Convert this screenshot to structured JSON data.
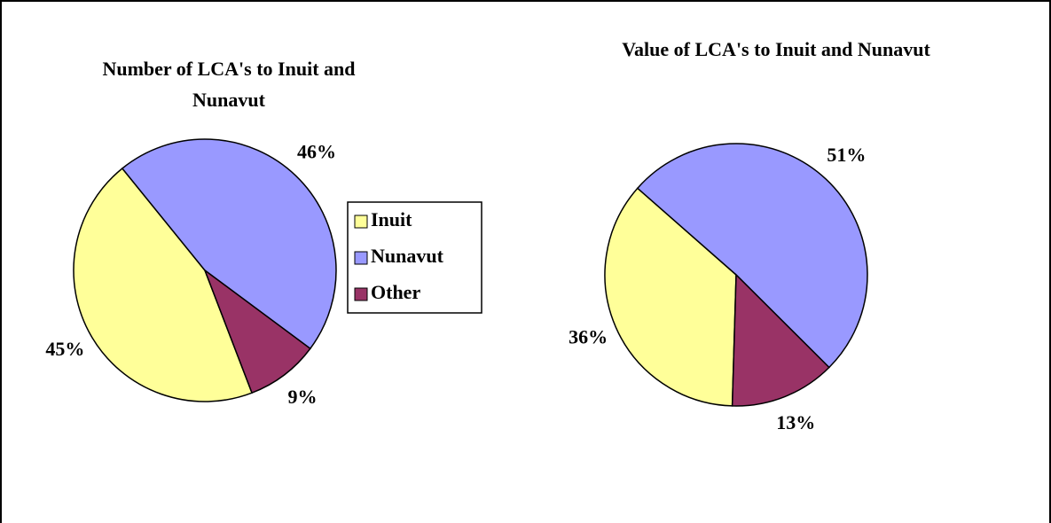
{
  "chart_data": [
    {
      "type": "pie",
      "title": "Number of LCA's to Inuit and Nunavut",
      "categories": [
        "Inuit",
        "Nunavut",
        "Other"
      ],
      "values": [
        45,
        46,
        9
      ],
      "value_labels": [
        "45%",
        "46%",
        "9%"
      ],
      "colors": [
        "#ffff99",
        "#9999ff",
        "#993366"
      ],
      "legend": "right"
    },
    {
      "type": "pie",
      "title": "Value of LCA's to Inuit and Nunavut",
      "categories": [
        "Inuit",
        "Nunavut",
        "Other"
      ],
      "values": [
        36,
        51,
        13
      ],
      "value_labels": [
        "36%",
        "51%",
        "13%"
      ],
      "colors": [
        "#ffff99",
        "#9999ff",
        "#993366"
      ]
    }
  ]
}
